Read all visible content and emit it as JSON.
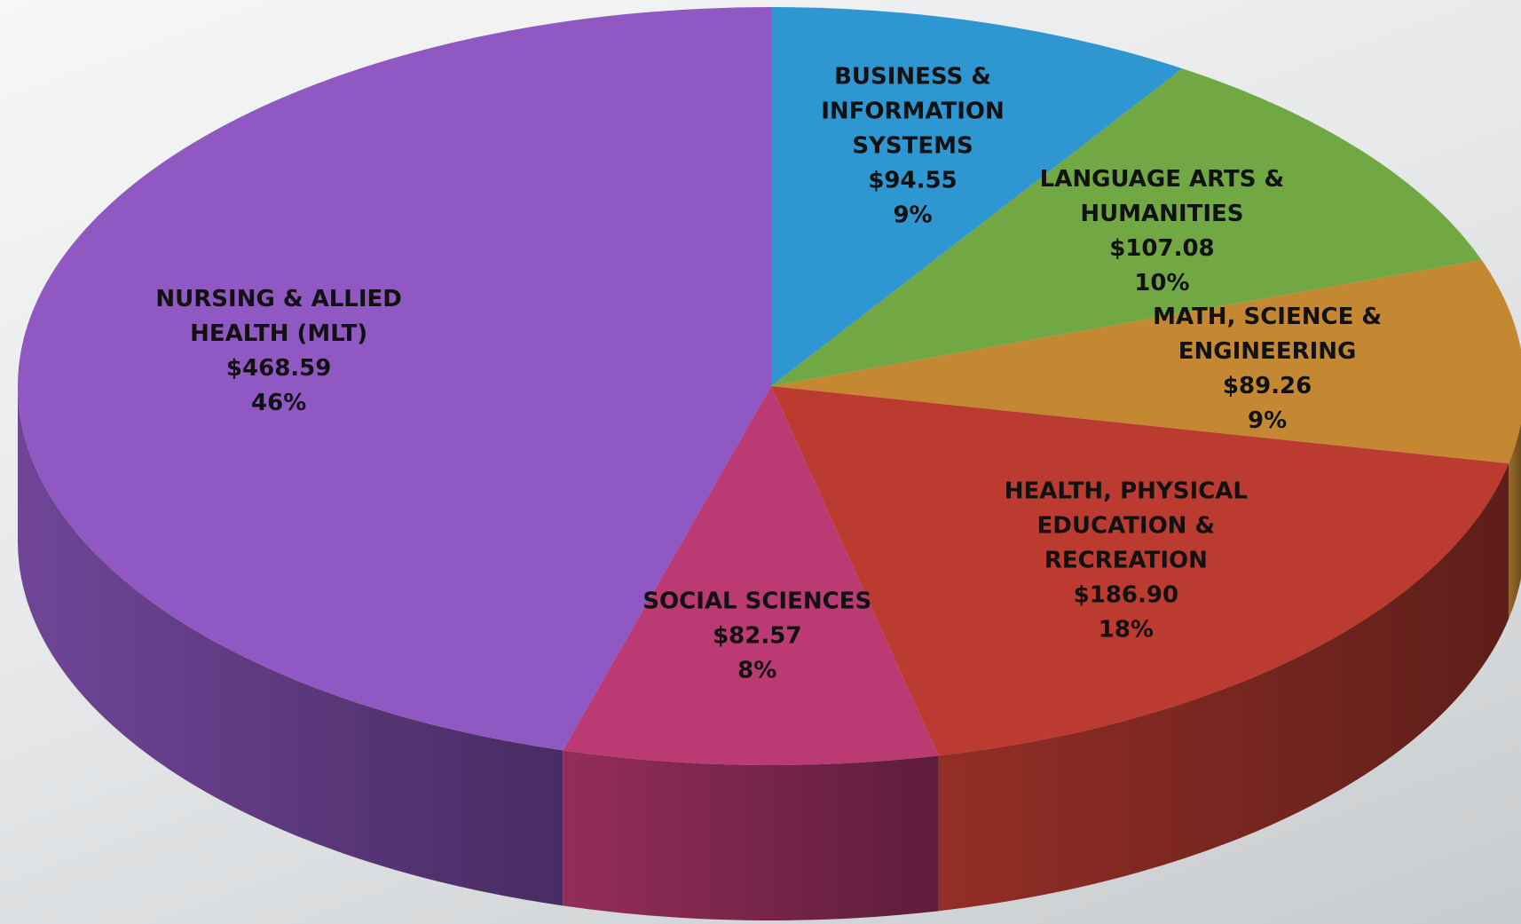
{
  "chart_data": {
    "type": "pie",
    "categories": [
      "BUSINESS & INFORMATION SYSTEMS",
      "LANGUAGE ARTS & HUMANITIES",
      "MATH, SCIENCE & ENGINEERING",
      "HEALTH, PHYSICAL EDUCATION & RECREATION",
      "SOCIAL SCIENCES",
      "NURSING & ALLIED HEALTH (MLT)"
    ],
    "values": [
      94.55,
      107.08,
      89.26,
      186.9,
      82.57,
      468.59
    ],
    "value_labels": [
      "$94.55",
      "$107.08",
      "$89.26",
      "$186.90",
      "$82.57",
      "$468.59"
    ],
    "percents": [
      9,
      10,
      9,
      18,
      8,
      46
    ],
    "percent_labels": [
      "9%",
      "10%",
      "9%",
      "18%",
      "8%",
      "46%"
    ],
    "colors": [
      "#2e96d1",
      "#72a844",
      "#c48832",
      "#bc3b31",
      "#bc3a74",
      "#8f58c3"
    ]
  }
}
